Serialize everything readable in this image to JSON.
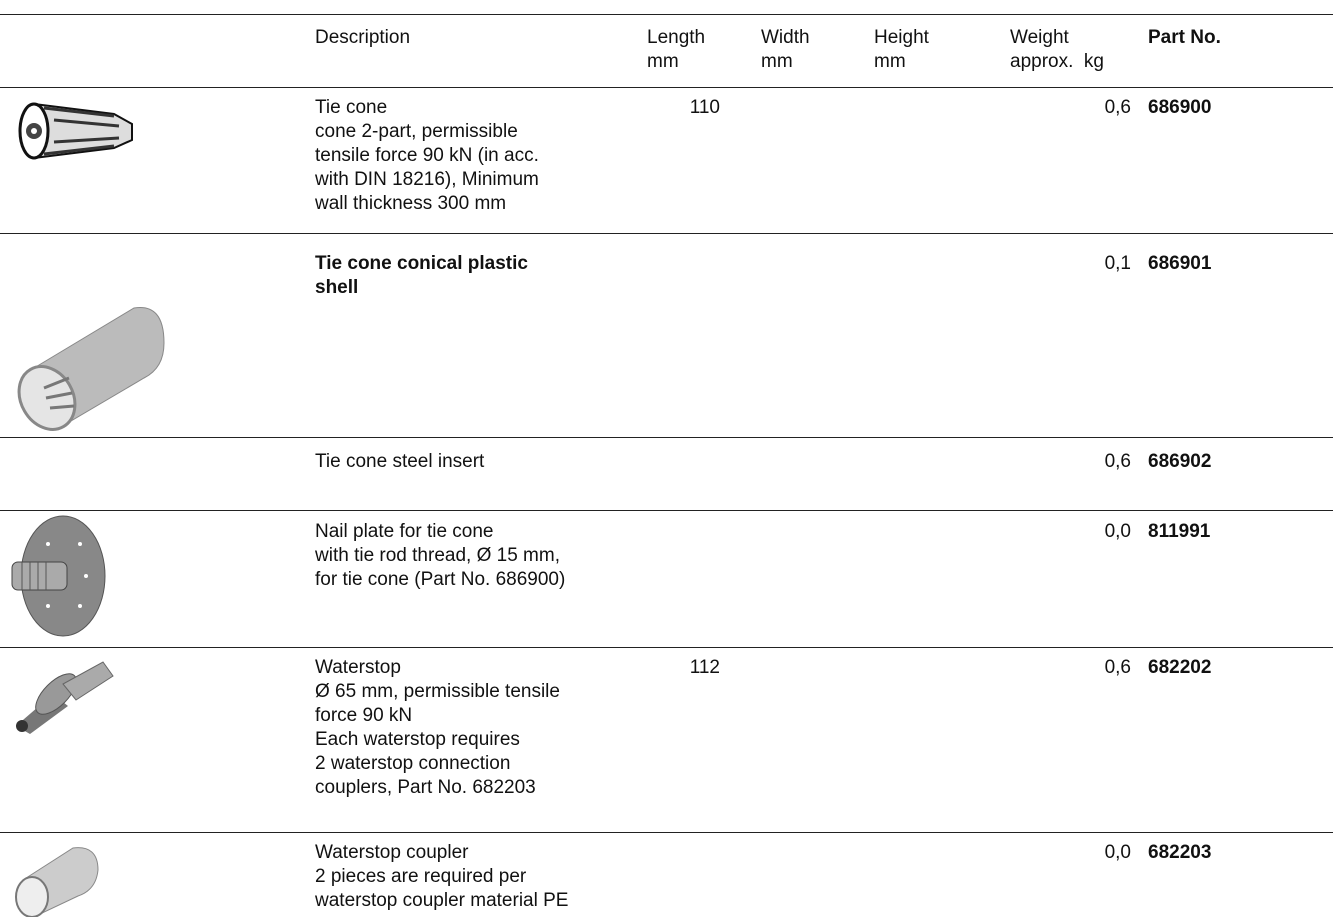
{
  "header": {
    "description": [
      "Description"
    ],
    "length": [
      "Length",
      "mm"
    ],
    "width": [
      "Width",
      "mm"
    ],
    "height": [
      "Height",
      "mm"
    ],
    "weight": [
      "Weight",
      "approx.  kg"
    ],
    "part_no": [
      "Part No."
    ]
  },
  "rows": [
    {
      "description": [
        "Tie cone",
        "cone 2-part, permissible",
        "tensile force 90 kN (in acc.",
        "with DIN 18216), Minimum",
        "wall thickness 300 mm"
      ],
      "length": "110",
      "weight": "0,6",
      "part_no": "686900"
    },
    {
      "description": [
        "Tie cone conical plastic",
        "shell"
      ],
      "bold": true,
      "weight": "0,1",
      "part_no": "686901"
    },
    {
      "description": [
        "Tie cone steel insert"
      ],
      "weight": "0,6",
      "part_no": "686902"
    },
    {
      "description": [
        "Nail plate for tie cone",
        "with tie rod thread, Ø 15 mm,",
        "for tie cone (Part No. 686900)"
      ],
      "weight": "0,0",
      "part_no": "811991"
    },
    {
      "description": [
        "Waterstop",
        "Ø 65 mm, permissible tensile",
        "force 90 kN",
        "Each waterstop requires",
        "2 waterstop connection",
        "couplers, Part No. 682203"
      ],
      "length": "112",
      "weight": "0,6",
      "part_no": "682202"
    },
    {
      "description": [
        "Waterstop coupler",
        "2 pieces are required per",
        "waterstop coupler material PE"
      ],
      "weight": "0,0",
      "part_no": "682203"
    }
  ]
}
